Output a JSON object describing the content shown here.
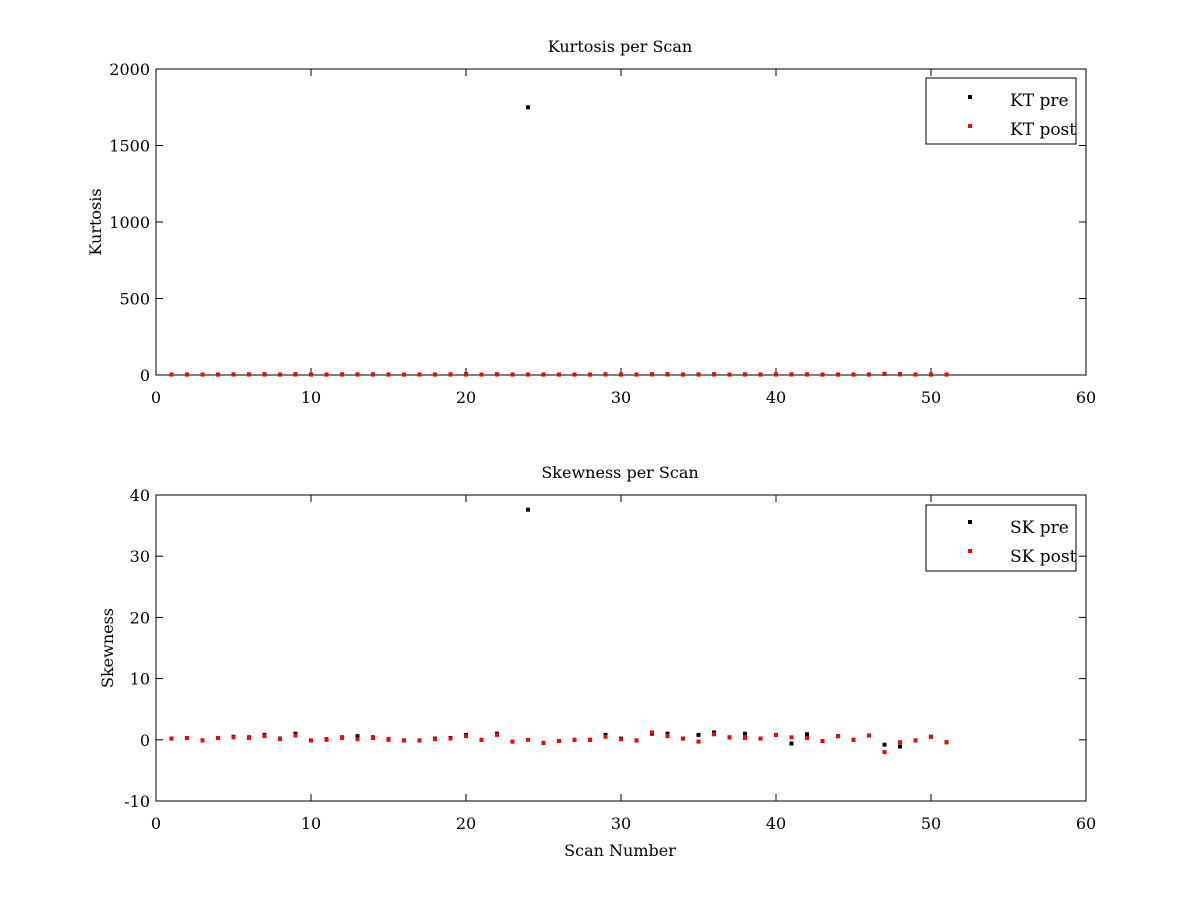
{
  "chart_data": [
    {
      "type": "scatter",
      "title": "Kurtosis per Scan",
      "xlabel": "",
      "ylabel": "Kurtosis",
      "xlim": [
        0,
        60
      ],
      "ylim": [
        0,
        2000
      ],
      "xticks": [
        0,
        10,
        20,
        30,
        40,
        50,
        60
      ],
      "yticks": [
        0,
        500,
        1000,
        1500,
        2000
      ],
      "grid": false,
      "legend_position": "top-right",
      "series": [
        {
          "name": "KT pre",
          "color": "#000000",
          "x": [
            1,
            2,
            3,
            4,
            5,
            6,
            7,
            8,
            9,
            10,
            11,
            12,
            13,
            14,
            15,
            16,
            17,
            18,
            19,
            20,
            21,
            22,
            23,
            24,
            25,
            26,
            27,
            28,
            29,
            30,
            31,
            32,
            33,
            34,
            35,
            36,
            37,
            38,
            39,
            40,
            41,
            42,
            43,
            44,
            45,
            46,
            47,
            48,
            49,
            50,
            51
          ],
          "y": [
            3,
            3,
            3,
            3,
            4,
            4,
            5,
            3,
            5,
            3,
            3,
            4,
            4,
            4,
            3,
            3,
            3,
            3,
            4,
            5,
            3,
            4,
            3,
            1750,
            3,
            3,
            3,
            3,
            4,
            3,
            3,
            5,
            5,
            3,
            4,
            5,
            3,
            4,
            3,
            4,
            4,
            4,
            3,
            3,
            3,
            3,
            7,
            6,
            3,
            3,
            3
          ]
        },
        {
          "name": "KT post",
          "color": "#ff0000",
          "x": [
            1,
            2,
            3,
            4,
            5,
            6,
            7,
            8,
            9,
            10,
            11,
            12,
            13,
            14,
            15,
            16,
            17,
            18,
            19,
            20,
            21,
            22,
            23,
            24,
            25,
            26,
            27,
            28,
            29,
            30,
            31,
            32,
            33,
            34,
            35,
            36,
            37,
            38,
            39,
            40,
            41,
            42,
            43,
            44,
            45,
            46,
            47,
            48,
            49,
            50,
            51
          ],
          "y": [
            3,
            3,
            3,
            3,
            3,
            3,
            3,
            3,
            3,
            3,
            3,
            3,
            3,
            3,
            3,
            3,
            3,
            3,
            3,
            3,
            3,
            4,
            3,
            3,
            3,
            3,
            3,
            3,
            4,
            3,
            3,
            4,
            4,
            3,
            3,
            4,
            3,
            3,
            3,
            3,
            3,
            3,
            3,
            3,
            3,
            3,
            8,
            4,
            3,
            3,
            3
          ]
        }
      ]
    },
    {
      "type": "scatter",
      "title": "Skewness per Scan",
      "xlabel": "Scan Number",
      "ylabel": "Skewness",
      "xlim": [
        0,
        60
      ],
      "ylim": [
        -10,
        40
      ],
      "xticks": [
        0,
        10,
        20,
        30,
        40,
        50,
        60
      ],
      "yticks": [
        -10,
        0,
        10,
        20,
        30,
        40
      ],
      "grid": false,
      "legend_position": "top-right",
      "series": [
        {
          "name": "SK pre",
          "color": "#000000",
          "x": [
            1,
            2,
            3,
            4,
            5,
            6,
            7,
            8,
            9,
            10,
            11,
            12,
            13,
            14,
            15,
            16,
            17,
            18,
            19,
            20,
            21,
            22,
            23,
            24,
            25,
            26,
            27,
            28,
            29,
            30,
            31,
            32,
            33,
            34,
            35,
            36,
            37,
            38,
            39,
            40,
            41,
            42,
            43,
            44,
            45,
            46,
            47,
            48,
            49,
            50,
            51
          ],
          "y": [
            0.2,
            0.3,
            -0.1,
            0.3,
            0.5,
            0.4,
            0.8,
            0.2,
            1.0,
            -0.1,
            0.1,
            0.4,
            0.6,
            0.4,
            0.1,
            -0.1,
            -0.1,
            0.2,
            0.3,
            0.8,
            0.0,
            1.0,
            -0.3,
            37.6,
            -0.5,
            -0.2,
            0.0,
            0.0,
            0.8,
            0.2,
            -0.1,
            1.0,
            1.0,
            0.2,
            0.8,
            1.2,
            0.4,
            1.0,
            0.2,
            0.8,
            -0.6,
            0.9,
            -0.2,
            0.6,
            0.0,
            0.7,
            -0.8,
            -1.1,
            -0.1,
            0.5,
            -0.4
          ]
        },
        {
          "name": "SK post",
          "color": "#ff0000",
          "x": [
            1,
            2,
            3,
            4,
            5,
            6,
            7,
            8,
            9,
            10,
            11,
            12,
            13,
            14,
            15,
            16,
            17,
            18,
            19,
            20,
            21,
            22,
            23,
            24,
            25,
            26,
            27,
            28,
            29,
            30,
            31,
            32,
            33,
            34,
            35,
            36,
            37,
            38,
            39,
            40,
            41,
            42,
            43,
            44,
            45,
            46,
            47,
            48,
            49,
            50,
            51
          ],
          "y": [
            0.2,
            0.3,
            -0.1,
            0.3,
            0.4,
            0.3,
            0.6,
            0.1,
            0.7,
            -0.1,
            0.0,
            0.3,
            0.1,
            0.3,
            0.0,
            -0.1,
            -0.1,
            0.1,
            0.2,
            0.6,
            0.0,
            0.8,
            -0.3,
            0.0,
            -0.5,
            -0.2,
            0.0,
            0.0,
            0.5,
            0.1,
            -0.1,
            1.2,
            0.6,
            0.2,
            -0.3,
            0.9,
            0.4,
            0.3,
            0.2,
            0.8,
            0.4,
            0.3,
            -0.2,
            0.6,
            0.0,
            0.7,
            -2.0,
            -0.4,
            -0.1,
            0.5,
            -0.4
          ]
        }
      ]
    }
  ]
}
